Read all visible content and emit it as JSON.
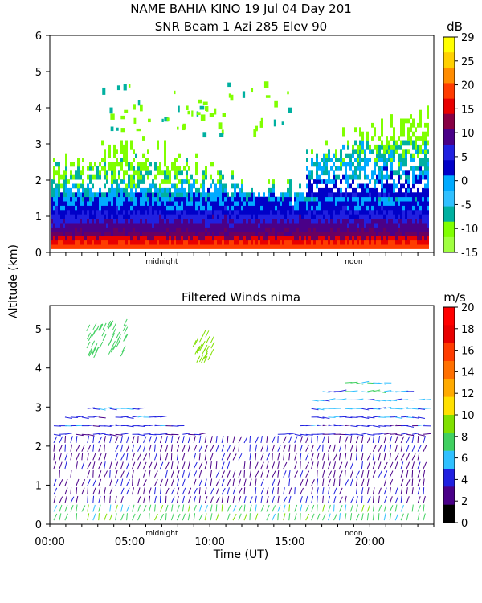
{
  "header": {
    "line1": "NAME BAHIA KINO   19 Jul 04 Day 201",
    "line2": "SNR Beam 1 Azi 285 Elev 90"
  },
  "shared": {
    "ylabel": "Altitude (km)",
    "xlabel": "Time (UT)",
    "xlabels": [
      "00:00",
      "05:00",
      "10:00",
      "15:00",
      "20:00"
    ],
    "annotations": [
      "midnight",
      "noon"
    ]
  },
  "chart_data": [
    {
      "type": "heatmap",
      "title": "",
      "ylim": [
        0,
        6
      ],
      "yticks": [
        0,
        1,
        2,
        3,
        4,
        5,
        6
      ],
      "xlim_hours": [
        0,
        24
      ],
      "colorbar": {
        "unit": "dB",
        "ticks": [
          29,
          25,
          20,
          15,
          10,
          5,
          0,
          -5,
          -10,
          -15
        ],
        "colors": [
          "#ffff00",
          "#ffd000",
          "#ff8c00",
          "#ff3c00",
          "#e80000",
          "#880044",
          "#4a0088",
          "#2020e0",
          "#0000c8",
          "#00aaff",
          "#30c0ff",
          "#00b0a0",
          "#80ff00",
          "#a0ff40"
        ]
      },
      "snr_profile": [
        {
          "alt": 0.15,
          "db": 17
        },
        {
          "alt": 0.3,
          "db": 12
        },
        {
          "alt": 0.5,
          "db": 5
        },
        {
          "alt": 0.8,
          "db": 0
        },
        {
          "alt": 1.2,
          "db": -5
        },
        {
          "alt": 2.0,
          "db": -10
        },
        {
          "alt": 3.0,
          "db": -13
        }
      ]
    },
    {
      "type": "heatmap",
      "title": "Filtered Winds nima",
      "ylim": [
        0,
        5.6
      ],
      "yticks": [
        0,
        1,
        2,
        3,
        4,
        5
      ],
      "xlim_hours": [
        0,
        24
      ],
      "colorbar": {
        "unit": "m/s",
        "ticks": [
          20,
          18,
          16,
          14,
          12,
          10,
          8,
          6,
          4,
          2,
          0
        ],
        "colors": [
          "#ff0000",
          "#e80000",
          "#ff3c00",
          "#ff7000",
          "#ffaa00",
          "#ffe000",
          "#80e000",
          "#40d060",
          "#30c0ff",
          "#2020e0",
          "#4a0088",
          "#000000"
        ]
      },
      "wind_profile": [
        {
          "alt": 0.5,
          "speed": 4
        },
        {
          "alt": 1.5,
          "speed": 3
        },
        {
          "alt": 2.5,
          "speed": 5
        },
        {
          "alt": 3.0,
          "speed": 6
        },
        {
          "alt": 4.0,
          "speed": 9
        }
      ]
    }
  ]
}
